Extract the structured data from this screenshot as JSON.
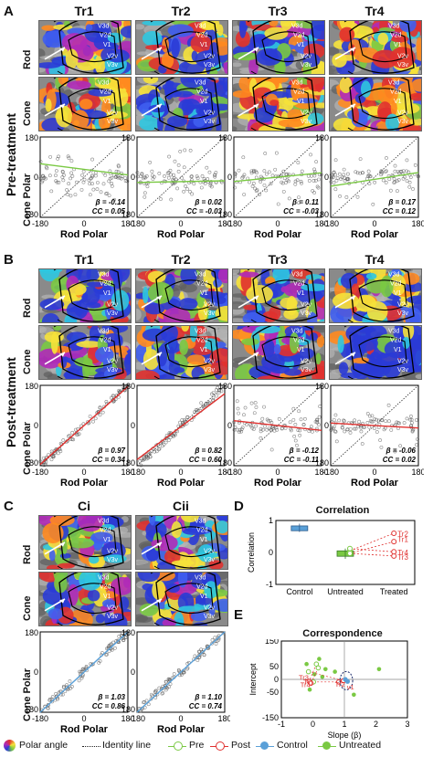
{
  "panels": {
    "A": {
      "letter": "A",
      "group": "Pre-treatment"
    },
    "B": {
      "letter": "B",
      "group": "Post-treatment"
    },
    "C": {
      "letter": "C"
    },
    "D": {
      "letter": "D",
      "title": "Correlation",
      "ylabel": "Correlation",
      "yticks": [
        "1",
        "0",
        "-1"
      ],
      "xticks": [
        "Control",
        "Untreated",
        "Treated"
      ],
      "point_labels": [
        "Tr2",
        "Tr1",
        "Tr4",
        "Tr3"
      ]
    },
    "E": {
      "letter": "E",
      "title": "Correspondence",
      "ylabel": "Intercept",
      "xlabel": "Slope (β)",
      "yticks": [
        "150",
        "50",
        "0",
        "-50",
        "-150"
      ],
      "xticks": [
        "-1",
        "0",
        "1",
        "2",
        "3"
      ],
      "point_labels": [
        "Tr3",
        "Tr1",
        "Tr4",
        "Tr2",
        "v1"
      ]
    }
  },
  "subjects_A": [
    "Tr1",
    "Tr2",
    "Tr3",
    "Tr4"
  ],
  "subjects_B": [
    "Tr1",
    "Tr2",
    "Tr3",
    "Tr4"
  ],
  "subjects_C": [
    "Ci",
    "Cii"
  ],
  "row_labels": {
    "rod": "Rod",
    "cone": "Cone"
  },
  "axis": {
    "ylabel": "Cone Polar",
    "xlabel": "Rod Polar",
    "ticks_x": [
      "-180",
      "0",
      "180"
    ],
    "ticks_y": [
      "180",
      "0",
      "-180"
    ]
  },
  "area_labels": [
    "V3d",
    "V2d",
    "V1",
    "V2v",
    "V3v"
  ],
  "stats_A": [
    {
      "beta": "β = -0.14",
      "cc": "CC = 0.05"
    },
    {
      "beta": "β = 0.02",
      "cc": "CC = -0.03"
    },
    {
      "beta": "β = 0.11",
      "cc": "CC = -0.03"
    },
    {
      "beta": "β = 0.17",
      "cc": "CC = 0.12"
    }
  ],
  "stats_B": [
    {
      "beta": "β = 0.97",
      "cc": "CC = 0.34"
    },
    {
      "beta": "β = 0.82",
      "cc": "CC = 0.60"
    },
    {
      "beta": "β = -0.12",
      "cc": "CC = -0.11"
    },
    {
      "beta": "β = -0.06",
      "cc": "CC = 0.02"
    }
  ],
  "stats_C": [
    {
      "beta": "β = 1.03",
      "cc": "CC = 0.86"
    },
    {
      "beta": "β = 1.10",
      "cc": "CC = 0.74"
    }
  ],
  "legend": {
    "polar": "Polar angle",
    "identity": "Identity line",
    "pre": "Pre",
    "post": "Post",
    "control": "Control",
    "untreated": "Untreated"
  },
  "colors": {
    "pre": "#7ac943",
    "post": "#e0312f",
    "control": "#5aa0d8",
    "untreated": "#7ac943",
    "map_blue": "#2a3bd6"
  }
}
